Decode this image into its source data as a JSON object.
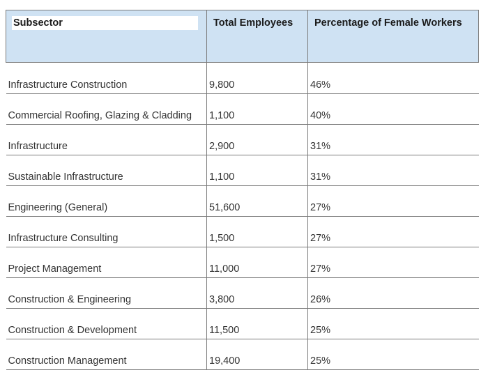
{
  "table": {
    "headers": [
      "Subsector",
      "Total Employees",
      "Percentage of Female Workers"
    ],
    "rows": [
      [
        "Infrastructure Construction",
        "9,800",
        "46%"
      ],
      [
        "Commercial Roofing, Glazing & Cladding",
        "1,100",
        "40%"
      ],
      [
        "Infrastructure",
        "2,900",
        "31%"
      ],
      [
        "Sustainable Infrastructure",
        "1,100",
        "31%"
      ],
      [
        "Engineering (General)",
        "51,600",
        "27%"
      ],
      [
        "Infrastructure Consulting",
        "1,500",
        "27%"
      ],
      [
        "Project Management",
        "11,000",
        "27%"
      ],
      [
        "Construction & Engineering",
        "3,800",
        "26%"
      ],
      [
        "Construction & Development",
        "11,500",
        "25%"
      ],
      [
        "Construction Management",
        "19,400",
        "25%"
      ]
    ]
  },
  "colors": {
    "header_background": "#cfe2f3",
    "border": "#7a7a7a",
    "text": "#333333"
  }
}
